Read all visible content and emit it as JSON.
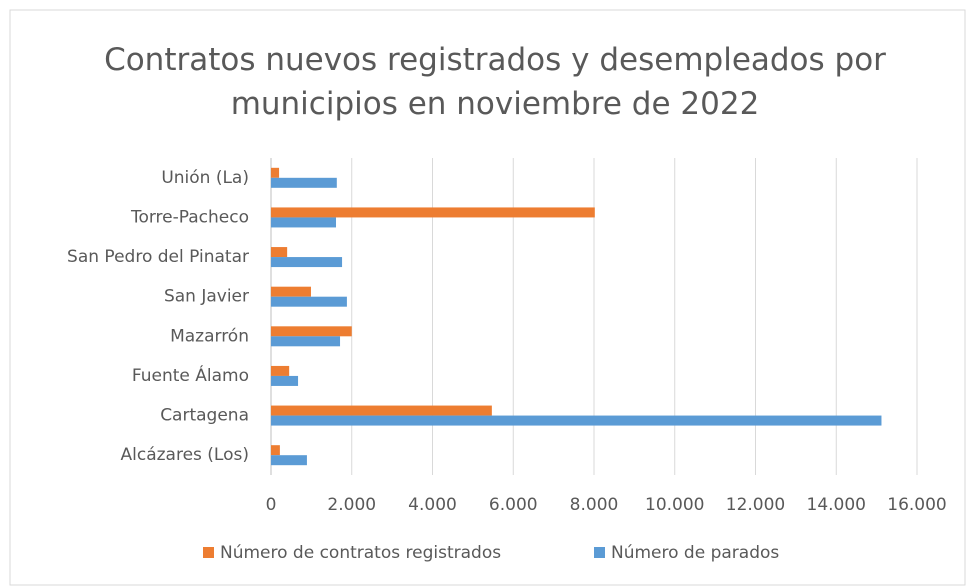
{
  "chart_data": {
    "type": "hbar",
    "title": "Contratos nuevos registrados y desempleados por municipios en noviembre de 2022",
    "categories": [
      "Unión (La)",
      "Torre-Pacheco",
      "San Pedro del Pinatar",
      "San Javier",
      "Mazarrón",
      "Fuente Álamo",
      "Cartagena",
      "Alcázares (Los)"
    ],
    "series": [
      {
        "name": "Número de contratos registrados",
        "color": "#ed7d31",
        "values": [
          200,
          8020,
          400,
          990,
          2000,
          450,
          5470,
          220
        ]
      },
      {
        "name": "Número de parados",
        "color": "#5b9bd5",
        "values": [
          1630,
          1610,
          1760,
          1880,
          1710,
          670,
          15120,
          890
        ]
      }
    ],
    "xlim": [
      0,
      16000
    ],
    "xticks": [
      0,
      {
        "value": 2000,
        "label": "2.000"
      },
      {
        "value": 4000,
        "label": "4.000"
      },
      {
        "value": 6000,
        "label": "6.000"
      },
      {
        "value": 8000,
        "label": "8.000"
      },
      {
        "value": 10000,
        "label": "10.000"
      },
      {
        "value": 12000,
        "label": "12.000"
      },
      {
        "value": 14000,
        "label": "14.000"
      },
      {
        "value": 16000,
        "label": "16.000"
      }
    ],
    "grid": true,
    "legend": "bottom"
  }
}
